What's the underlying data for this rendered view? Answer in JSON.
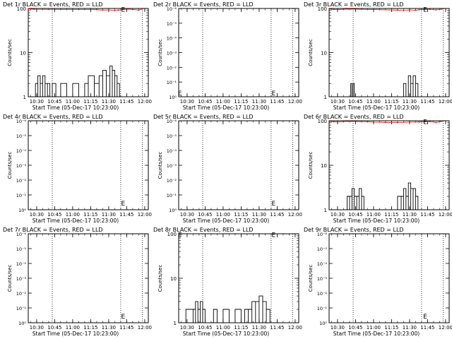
{
  "chart_data": [
    {
      "type": "line",
      "title": "Det 1r BLACK = Events, RED = LLD",
      "xlabel": "Start Time (05-Dec-17 10:23:00)",
      "ylabel": "Counts/sec",
      "yscale": "log",
      "ylim": [
        1,
        100
      ],
      "yticks": [
        "1",
        "10",
        "100"
      ],
      "xticks": [
        "10:30",
        "10:45",
        "11:00",
        "11:15",
        "11:30",
        "11:45",
        "12:00"
      ],
      "vlines": [
        "10:43",
        "11:40",
        "11:58"
      ],
      "series": [
        {
          "color": "#ff0000",
          "x": [
            "10:23",
            "10:25",
            "10:28",
            "11:20",
            "11:25",
            "11:30",
            "11:35",
            "11:38",
            "11:46",
            "11:50",
            "11:55",
            "11:58"
          ],
          "y": [
            98,
            97,
            96,
            94,
            92,
            93,
            90,
            92,
            97,
            95,
            92,
            97
          ]
        },
        {
          "color": "#000000",
          "x": [
            "10:29",
            "10:31",
            "10:33",
            "10:35",
            "10:37",
            "10:39",
            "10:41",
            "10:43",
            "10:46",
            "10:50",
            "10:55",
            "11:00",
            "11:05",
            "11:10",
            "11:13",
            "11:18",
            "11:22",
            "11:25",
            "11:28",
            "11:31",
            "11:33",
            "11:35",
            "11:37",
            "11:39"
          ],
          "y": [
            2,
            3,
            2,
            3,
            2,
            2,
            1,
            2,
            1,
            2,
            1,
            2,
            1,
            2,
            3,
            2,
            3,
            4,
            3,
            5,
            4,
            3,
            2,
            2
          ]
        }
      ],
      "markers": [
        {
          "x": "11:42",
          "y": 98,
          "symbol": "E"
        }
      ]
    },
    {
      "type": "line",
      "title": "Det 2r BLACK = Events, RED = LLD",
      "xlabel": "Start Time (05-Dec-17 10:23:00)",
      "ylabel": "Counts/sec",
      "yscale": "linear",
      "ylim": [
        0,
        1
      ],
      "yticks": [
        "10⁰",
        "10⁻¹",
        "10⁻²",
        "10⁻³",
        "10⁻⁴",
        "10⁻⁵",
        "10⁻⁶"
      ],
      "xticks": [
        "10:30",
        "10:45",
        "11:00",
        "11:15",
        "11:30",
        "11:45",
        "12:00"
      ],
      "vlines": [
        "10:43",
        "11:40",
        "11:58"
      ],
      "series": [],
      "markers": [
        {
          "x": "10:24",
          "y": 0.05,
          "symbol": "E"
        },
        {
          "x": "11:42",
          "y": 0.05,
          "symbol": "E"
        }
      ]
    },
    {
      "type": "line",
      "title": "Det 3r BLACK = Events, RED = LLD",
      "xlabel": "Start Time (05-Dec-17 10:23:00)",
      "ylabel": "Counts/sec",
      "yscale": "log",
      "ylim": [
        1,
        100
      ],
      "yticks": [
        "1",
        "10",
        "100"
      ],
      "xticks": [
        "10:30",
        "10:45",
        "11:00",
        "11:15",
        "11:30",
        "11:45",
        "12:00"
      ],
      "vlines": [
        "10:43",
        "11:40",
        "11:58"
      ],
      "series": [
        {
          "color": "#ff0000",
          "x": [
            "10:23",
            "10:27",
            "10:30",
            "10:35",
            "10:40",
            "11:20",
            "11:25",
            "11:30",
            "11:35",
            "11:38",
            "11:47",
            "11:52",
            "11:57"
          ],
          "y": [
            97,
            95,
            94,
            96,
            97,
            92,
            90,
            93,
            91,
            94,
            96,
            93,
            97
          ]
        },
        {
          "color": "#000000",
          "x": [
            "10:40",
            "10:41",
            "10:42",
            "10:43",
            "10:44",
            "10:46",
            "11:23",
            "11:25",
            "11:27",
            "11:29",
            "11:31",
            "11:33",
            "11:35",
            "11:37"
          ],
          "y": [
            1,
            2,
            1,
            2,
            1,
            1,
            1,
            2,
            1,
            3,
            2,
            3,
            2,
            1
          ]
        }
      ],
      "markers": [
        {
          "x": "11:43",
          "y": 98,
          "symbol": "E"
        }
      ]
    },
    {
      "type": "line",
      "title": "Det 4r BLACK = Events, RED = LLD",
      "xlabel": "Start Time (05-Dec-17 10:23:00)",
      "ylabel": "Counts/sec",
      "yscale": "linear",
      "ylim": [
        0,
        1
      ],
      "yticks": [
        "10⁰",
        "10⁻¹",
        "10⁻²",
        "10⁻³",
        "10⁻⁴",
        "10⁻⁵",
        "10⁻⁶"
      ],
      "xticks": [
        "10:30",
        "10:45",
        "11:00",
        "11:15",
        "11:30",
        "11:45",
        "12:00"
      ],
      "vlines": [
        "10:43",
        "11:40",
        "11:58"
      ],
      "series": [],
      "markers": [
        {
          "x": "11:42",
          "y": 0.08,
          "symbol": "E"
        }
      ]
    },
    {
      "type": "line",
      "title": "Det 5r BLACK = Events, RED = LLD",
      "xlabel": "Start Time (05-Dec-17 10:23:00)",
      "ylabel": "Counts/sec",
      "yscale": "linear",
      "ylim": [
        0,
        1
      ],
      "yticks": [
        "10⁰",
        "10⁻¹",
        "10⁻²",
        "10⁻³",
        "10⁻⁴",
        "10⁻⁵",
        "10⁻⁶"
      ],
      "xticks": [
        "10:30",
        "10:45",
        "11:00",
        "11:15",
        "11:30",
        "11:45",
        "12:00"
      ],
      "vlines": [
        "10:43",
        "11:40",
        "11:58"
      ],
      "series": [],
      "markers": [
        {
          "x": "11:42",
          "y": 0.08,
          "symbol": "E"
        }
      ]
    },
    {
      "type": "line",
      "title": "Det 6r BLACK = Events, RED = LLD",
      "xlabel": "Start Time (05-Dec-17 10:23:00)",
      "ylabel": "Counts/sec",
      "yscale": "log",
      "ylim": [
        1,
        100
      ],
      "yticks": [
        "1",
        "10",
        "100"
      ],
      "xticks": [
        "10:30",
        "10:45",
        "11:00",
        "11:15",
        "11:30",
        "11:45",
        "12:00"
      ],
      "vlines": [
        "10:43",
        "11:40",
        "11:58"
      ],
      "series": [
        {
          "color": "#ff0000",
          "x": [
            "10:23",
            "10:27",
            "10:30",
            "10:35",
            "10:40",
            "10:55",
            "11:00",
            "11:10",
            "11:20",
            "11:30",
            "11:38",
            "11:47",
            "11:52",
            "11:57"
          ],
          "y": [
            96,
            95,
            94,
            96,
            97,
            95,
            93,
            92,
            91,
            93,
            94,
            96,
            92,
            97
          ]
        },
        {
          "color": "#000000",
          "x": [
            "10:36",
            "10:38",
            "10:40",
            "10:42",
            "10:44",
            "10:46",
            "10:48",
            "10:50",
            "10:52",
            "11:18",
            "11:20",
            "11:23",
            "11:25",
            "11:27",
            "11:29",
            "11:31",
            "11:33",
            "11:35",
            "11:37"
          ],
          "y": [
            1,
            2,
            2,
            3,
            2,
            2,
            3,
            2,
            1,
            1,
            2,
            2,
            3,
            2,
            4,
            3,
            3,
            2,
            1
          ]
        }
      ],
      "markers": [
        {
          "x": "11:43",
          "y": 98,
          "symbol": "E"
        }
      ]
    },
    {
      "type": "line",
      "title": "Det 7r BLACK = Events, RED = LLD",
      "xlabel": "Start Time (05-Dec-17 10:23:00)",
      "ylabel": "Counts/sec",
      "yscale": "linear",
      "ylim": [
        0,
        1
      ],
      "yticks": [
        "10⁰",
        "10⁻¹",
        "10⁻²",
        "10⁻³",
        "10⁻⁴",
        "10⁻⁵",
        "10⁻⁶"
      ],
      "xticks": [
        "10:30",
        "10:45",
        "11:00",
        "11:15",
        "11:30",
        "11:45",
        "12:00"
      ],
      "vlines": [
        "10:43",
        "11:40",
        "11:58"
      ],
      "series": [],
      "markers": [
        {
          "x": "11:42",
          "y": 0.08,
          "symbol": "E"
        }
      ]
    },
    {
      "type": "line",
      "title": "Det 8r BLACK = Events, RED = LLD",
      "xlabel": "Start Time (05-Dec-17 10:23:00)",
      "ylabel": "Counts/sec",
      "yscale": "log",
      "ylim": [
        1,
        100
      ],
      "yticks": [
        "1",
        "10",
        "100"
      ],
      "xticks": [
        "10:30",
        "10:45",
        "11:00",
        "11:15",
        "11:30",
        "11:45",
        "12:00"
      ],
      "vlines": [
        "10:43",
        "11:40",
        "11:58"
      ],
      "series": [
        {
          "color": "#000000",
          "x": [
            "10:29",
            "10:35",
            "10:37",
            "10:39",
            "10:41",
            "10:43",
            "10:45",
            "10:52",
            "10:55",
            "11:00",
            "11:05",
            "11:10",
            "11:15",
            "11:18",
            "11:21",
            "11:24",
            "11:27",
            "11:30",
            "11:33",
            "11:36",
            "11:39"
          ],
          "y": [
            2,
            2,
            3,
            2,
            3,
            2,
            1,
            2,
            1,
            2,
            1,
            2,
            1,
            2,
            2,
            3,
            3,
            4,
            3,
            2,
            1
          ]
        }
      ],
      "markers": [
        {
          "x": "10:24",
          "y": 98,
          "symbol": "E"
        },
        {
          "x": "11:42",
          "y": 98,
          "symbol": "E"
        }
      ]
    },
    {
      "type": "line",
      "title": "Det 9r BLACK = Events, RED = LLD",
      "xlabel": "Start Time (05-Dec-17 10:23:00)",
      "ylabel": "Counts/sec",
      "yscale": "linear",
      "ylim": [
        0,
        1
      ],
      "yticks": [
        "10⁰",
        "10⁻¹",
        "10⁻²",
        "10⁻³",
        "10⁻⁴",
        "10⁻⁵",
        "10⁻⁶"
      ],
      "xticks": [
        "10:30",
        "10:45",
        "11:00",
        "11:15",
        "11:30",
        "11:45",
        "12:00"
      ],
      "vlines": [
        "10:43",
        "11:40",
        "11:58"
      ],
      "series": [],
      "markers": [
        {
          "x": "11:43",
          "y": 0.08,
          "symbol": "E"
        }
      ]
    }
  ]
}
